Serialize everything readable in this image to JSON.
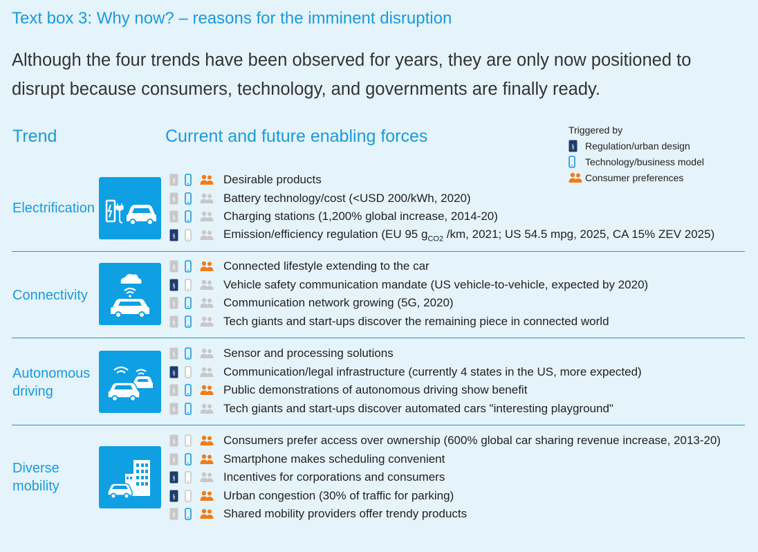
{
  "title": "Text box 3: Why now? – reasons for the imminent disruption",
  "intro": "Although the four trends have been observed for years, they are only now positioned to disrupt because consumers, technology, and governments are finally ready.",
  "headers": {
    "trend": "Trend",
    "forces": "Current and future enabling forces"
  },
  "legend": {
    "title": "Triggered by",
    "regulation": "Regulation/urban design",
    "technology": "Technology/business model",
    "consumer": "Consumer preferences"
  },
  "colors": {
    "accent": "#1a9bd7",
    "regulation": "#1d3b6e",
    "technology": "#1a9bd7",
    "consumer": "#f07d1a",
    "inactive": "#c8c8c8",
    "background": "#e5f3fb"
  },
  "trends": [
    {
      "label_line1": "Electrification",
      "label_line2": "",
      "icon": "charging-station-car-icon",
      "forces": [
        {
          "text": "Desirable products",
          "regulation": false,
          "technology": true,
          "consumer": true
        },
        {
          "text": "Battery technology/cost (<USD 200/kWh, 2020)",
          "regulation": false,
          "technology": true,
          "consumer": false
        },
        {
          "text": "Charging stations (1,200% global increase, 2014-20)",
          "regulation": false,
          "technology": true,
          "consumer": false
        },
        {
          "text_pre": "Emission/efficiency regulation (EU 95 g",
          "text_sub": "CO2",
          "text_post": " /km, 2021; US 54.5 mpg, 2025, CA 15% ZEV 2025)",
          "regulation": true,
          "technology": false,
          "consumer": false
        }
      ]
    },
    {
      "label_line1": "Connectivity",
      "label_line2": "",
      "icon": "connected-car-cloud-icon",
      "forces": [
        {
          "text": "Connected lifestyle extending to the car",
          "regulation": false,
          "technology": true,
          "consumer": true
        },
        {
          "text": "Vehicle safety communication mandate (US vehicle-to-vehicle, expected by 2020)",
          "regulation": true,
          "technology": false,
          "consumer": false
        },
        {
          "text": "Communication network growing (5G, 2020)",
          "regulation": false,
          "technology": true,
          "consumer": false
        },
        {
          "text": "Tech giants and start-ups discover the remaining piece in connected world",
          "regulation": false,
          "technology": true,
          "consumer": false
        }
      ]
    },
    {
      "label_line1": "Autonomous",
      "label_line2": "driving",
      "icon": "autonomous-cars-icon",
      "forces": [
        {
          "text": "Sensor and processing solutions",
          "regulation": false,
          "technology": true,
          "consumer": false
        },
        {
          "text": "Communication/legal infrastructure (currently 4 states in the US, more expected)",
          "regulation": true,
          "technology": false,
          "consumer": false
        },
        {
          "text": "Public demonstrations of autonomous driving show benefit",
          "regulation": false,
          "technology": true,
          "consumer": true
        },
        {
          "text": "Tech giants and start-ups discover automated cars \"interesting playground\"",
          "regulation": false,
          "technology": true,
          "consumer": false
        }
      ]
    },
    {
      "label_line1": "Diverse",
      "label_line2": "mobility",
      "icon": "city-buildings-car-icon",
      "forces": [
        {
          "text": "Consumers prefer access over ownership (600% global car sharing revenue increase, 2013-20)",
          "regulation": false,
          "technology": false,
          "consumer": true
        },
        {
          "text": "Smartphone makes scheduling convenient",
          "regulation": false,
          "technology": true,
          "consumer": true
        },
        {
          "text": "Incentives for corporations and consumers",
          "regulation": true,
          "technology": false,
          "consumer": false
        },
        {
          "text": "Urban congestion (30% of traffic for parking)",
          "regulation": true,
          "technology": false,
          "consumer": true
        },
        {
          "text": "Shared mobility providers offer trendy products",
          "regulation": false,
          "technology": true,
          "consumer": true
        }
      ]
    }
  ]
}
